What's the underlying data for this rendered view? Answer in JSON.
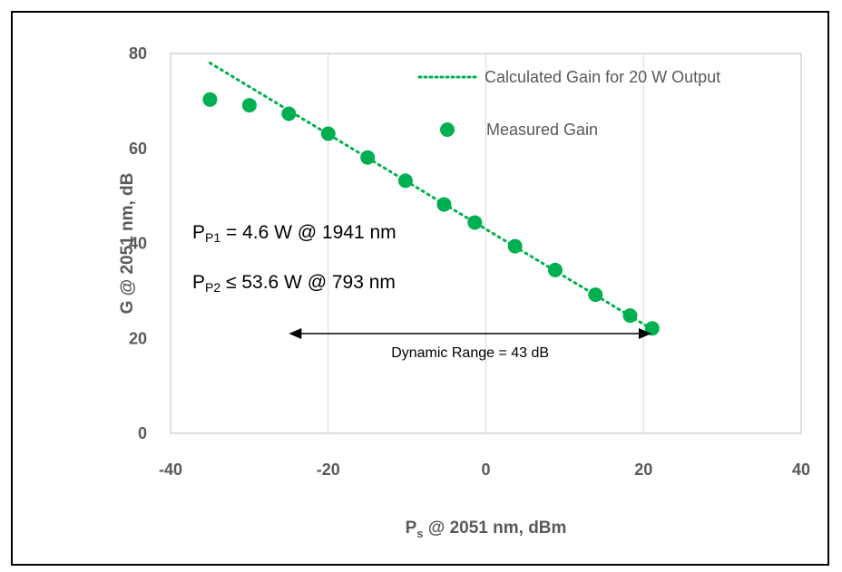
{
  "chart_data": {
    "type": "scatter",
    "xlabel": {
      "main": "P",
      "sub": "s",
      "rest": " @ 2051 nm, dBm"
    },
    "ylabel": "G @ 2051 nm, dB",
    "xlim": [
      -40,
      40
    ],
    "ylim": [
      0,
      80
    ],
    "xticks": [
      -40,
      -20,
      0,
      20,
      40
    ],
    "yticks": [
      0,
      20,
      40,
      60,
      80
    ],
    "x_tick_labels": [
      "-40",
      "-20",
      "0",
      "20",
      "40"
    ],
    "y_tick_labels": [
      "0",
      "20",
      "40",
      "60",
      "80"
    ],
    "grid": "vertical",
    "legend_position": "top-right",
    "series": [
      {
        "name": "Calculated Gain for 20 W Output",
        "style": "dotted-line",
        "color": "#00b050",
        "x": [
          -35,
          21
        ],
        "y": [
          78,
          22
        ]
      },
      {
        "name": "Measured Gain",
        "style": "markers",
        "color": "#00b050",
        "x": [
          -35,
          -30,
          -25,
          -20,
          -15,
          -10.2,
          -5.3,
          -1.4,
          3.7,
          8.8,
          13.9,
          18.3,
          21.1
        ],
        "y": [
          70.3,
          69.1,
          67.3,
          63.1,
          58.1,
          53.2,
          48.2,
          44.4,
          39.4,
          34.4,
          29.2,
          24.8,
          22.1
        ]
      }
    ],
    "annotations": [
      {
        "main": "P",
        "sub": "P1",
        "rest": " = 4.6 W @ 1941 nm"
      },
      {
        "main": "P",
        "sub": "P2",
        "rest": " ≤ 53.6 W @ 793 nm"
      }
    ],
    "range_arrow": {
      "label": "Dynamic Range = 43 dB",
      "x_from": -25,
      "x_to": 21,
      "y": 21
    }
  }
}
